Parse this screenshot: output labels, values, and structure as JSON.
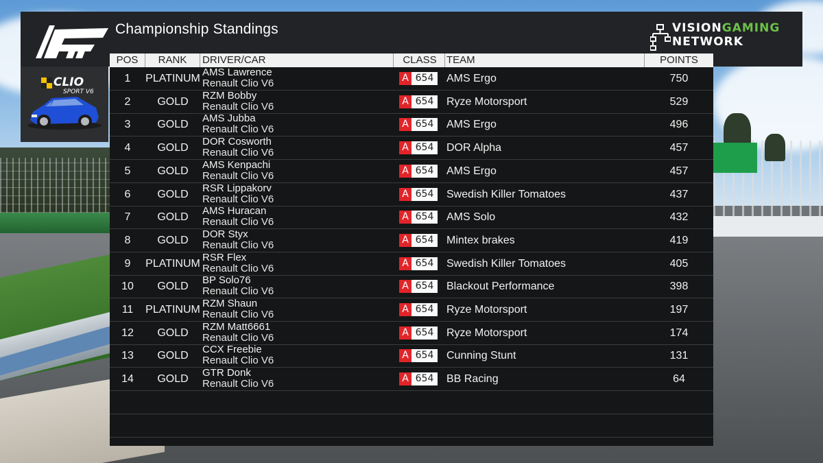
{
  "header": {
    "title": "Championship Standings",
    "network_line1_a": "VISION",
    "network_line1_b": "GAMING",
    "network_line2": "NETWORK"
  },
  "car_panel": {
    "badge_line1": "CLIO",
    "badge_line2": "SPORT V6",
    "car_color": "#1f4fd6"
  },
  "table": {
    "columns": {
      "pos": "POS",
      "rank": "RANK",
      "driver": "DRIVER/CAR",
      "class": "CLASS",
      "team": "TEAM",
      "points": "POINTS"
    },
    "rows": [
      {
        "pos": "1",
        "rank": "PLATINUM",
        "driver": "AMS Lawrence",
        "car": "Renault Clio V6",
        "class_letter": "A",
        "class_rating": "654",
        "team": "AMS Ergo",
        "points": "750"
      },
      {
        "pos": "2",
        "rank": "GOLD",
        "driver": "RZM Bobby",
        "car": "Renault Clio V6",
        "class_letter": "A",
        "class_rating": "654",
        "team": "Ryze Motorsport",
        "points": "529"
      },
      {
        "pos": "3",
        "rank": "GOLD",
        "driver": "AMS Jubba",
        "car": "Renault Clio V6",
        "class_letter": "A",
        "class_rating": "654",
        "team": "AMS Ergo",
        "points": "496"
      },
      {
        "pos": "4",
        "rank": "GOLD",
        "driver": "DOR Cosworth",
        "car": "Renault Clio V6",
        "class_letter": "A",
        "class_rating": "654",
        "team": "DOR Alpha",
        "points": "457"
      },
      {
        "pos": "5",
        "rank": "GOLD",
        "driver": "AMS Kenpachi",
        "car": "Renault Clio V6",
        "class_letter": "A",
        "class_rating": "654",
        "team": "AMS Ergo",
        "points": "457"
      },
      {
        "pos": "6",
        "rank": "GOLD",
        "driver": "RSR Lippakorv",
        "car": "Renault Clio V6",
        "class_letter": "A",
        "class_rating": "654",
        "team": "Swedish Killer Tomatoes",
        "points": "437"
      },
      {
        "pos": "7",
        "rank": "GOLD",
        "driver": "AMS Huracan",
        "car": "Renault Clio V6",
        "class_letter": "A",
        "class_rating": "654",
        "team": "AMS Solo",
        "points": "432"
      },
      {
        "pos": "8",
        "rank": "GOLD",
        "driver": "DOR Styx",
        "car": "Renault Clio V6",
        "class_letter": "A",
        "class_rating": "654",
        "team": "Mintex brakes",
        "points": "419"
      },
      {
        "pos": "9",
        "rank": "PLATINUM",
        "driver": "RSR Flex",
        "car": "Renault Clio V6",
        "class_letter": "A",
        "class_rating": "654",
        "team": "Swedish Killer Tomatoes",
        "points": "405"
      },
      {
        "pos": "10",
        "rank": "GOLD",
        "driver": "BP Solo76",
        "car": "Renault Clio V6",
        "class_letter": "A",
        "class_rating": "654",
        "team": "Blackout Performance",
        "points": "398"
      },
      {
        "pos": "11",
        "rank": "PLATINUM",
        "driver": "RZM Shaun",
        "car": "Renault Clio V6",
        "class_letter": "A",
        "class_rating": "654",
        "team": "Ryze Motorsport",
        "points": "197"
      },
      {
        "pos": "12",
        "rank": "GOLD",
        "driver": "RZM Matt6661",
        "car": "Renault Clio V6",
        "class_letter": "A",
        "class_rating": "654",
        "team": "Ryze Motorsport",
        "points": "174"
      },
      {
        "pos": "13",
        "rank": "GOLD",
        "driver": "CCX Freebie",
        "car": "Renault Clio V6",
        "class_letter": "A",
        "class_rating": "654",
        "team": "Cunning Stunt",
        "points": "131"
      },
      {
        "pos": "14",
        "rank": "GOLD",
        "driver": "GTR Donk",
        "car": "Renault Clio V6",
        "class_letter": "A",
        "class_rating": "654",
        "team": "BB Racing",
        "points": "64"
      }
    ]
  },
  "colors": {
    "class_badge_red": "#e0252a",
    "network_green": "#6cc04a"
  }
}
